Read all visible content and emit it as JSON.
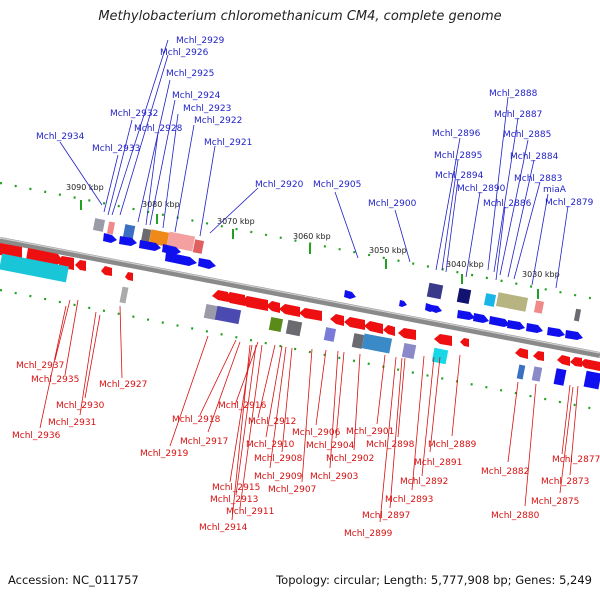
{
  "title": "Methylobacterium chloromethanicum CM4, complete genome",
  "footer": {
    "accession": "Accession: NC_011757",
    "summary": "Topology: circular; Length: 5,777,908 bp; Genes: 5,249"
  },
  "colors": {
    "top_strand_label": "#1f1fc8",
    "bottom_strand_label": "#d81010",
    "top_strand_arrow": "#1010ee",
    "bottom_strand_arrow": "#ee1010",
    "backbone": "#8a8a8a",
    "tick": "#22a022"
  },
  "scale": {
    "ticks": [
      "3090 kbp",
      "3080 kbp",
      "3070 kbp",
      "3060 kbp",
      "3050 kbp",
      "3040 kbp",
      "3030 kbp"
    ]
  },
  "top_labels": [
    "Mchl_2929",
    "Mchl_2926",
    "Mchl_2925",
    "Mchl_2924",
    "Mchl_2923",
    "Mchl_2922",
    "Mchl_2932",
    "Mchl_2928",
    "Mchl_2921",
    "Mchl_2934",
    "Mchl_2933",
    "Mchl_2920",
    "Mchl_2905",
    "Mchl_2900",
    "Mchl_2888",
    "Mchl_2887",
    "Mchl_2896",
    "Mchl_2885",
    "Mchl_2895",
    "Mchl_2884",
    "Mchl_2894",
    "Mchl_2883",
    "Mchl_2890",
    "miaA",
    "Mchl_2886",
    "Mchl_2879"
  ],
  "bottom_labels": [
    "Mchl_2937",
    "Mchl_2935",
    "Mchl_2927",
    "Mchl_2930",
    "Mchl_2931",
    "Mchl_2936",
    "Mchl_2916",
    "Mchl_2918",
    "Mchl_2912",
    "Mchl_2917",
    "Mchl_2906",
    "Mchl_2901",
    "Mchl_2910",
    "Mchl_2904",
    "Mchl_2898",
    "Mchl_2889",
    "Mchl_2919",
    "Mchl_2902",
    "Mchl_2908",
    "Mchl_2891",
    "Mchl_2909",
    "Mchl_2903",
    "Mchl_2882",
    "Mchl_2877",
    "Mchl_2915",
    "Mchl_2907",
    "Mchl_2892",
    "Mchl_2873",
    "Mchl_2913",
    "Mchl_2893",
    "Mchl_2875",
    "Mchl_2911",
    "Mchl_2897",
    "Mchl_2880",
    "Mchl_2914",
    "Mchl_2899"
  ]
}
